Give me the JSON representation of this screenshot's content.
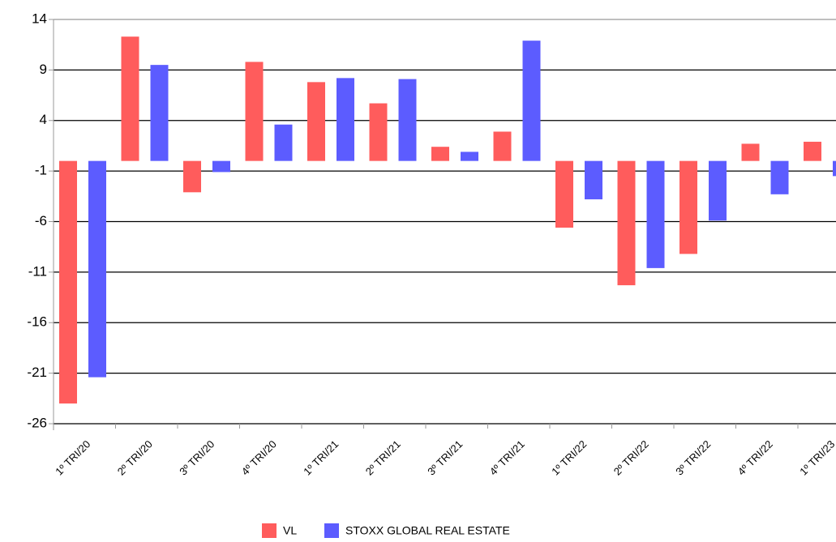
{
  "chart_data": {
    "type": "bar",
    "categories": [
      "1º TRI/20",
      "2º TRI/20",
      "3º TRI/20",
      "4º TRI/20",
      "1º TRI/21",
      "2º TRI/21",
      "3º TRI/21",
      "4º TRI/21",
      "1º TRI/22",
      "2º TRI/22",
      "3º TRI/22",
      "4º TRI/22",
      "1º TRI/23"
    ],
    "series": [
      {
        "name": "VL",
        "color": "#ff5c5c",
        "values": [
          -24.0,
          12.3,
          -3.1,
          9.8,
          7.8,
          5.7,
          1.4,
          2.9,
          -6.6,
          -12.3,
          -9.2,
          1.7,
          1.9
        ]
      },
      {
        "name": "STOXX GLOBAL REAL ESTATE",
        "color": "#5c5cff",
        "values": [
          -21.4,
          9.5,
          -1.1,
          3.6,
          8.2,
          8.1,
          0.9,
          11.9,
          -3.8,
          -10.6,
          -5.9,
          -3.3,
          -1.5
        ]
      }
    ],
    "ylim": [
      -26,
      14
    ],
    "yticks": [
      -26,
      -21,
      -16,
      -11,
      -6,
      -1,
      4,
      9,
      14
    ],
    "grid": true,
    "legend": "bottom"
  }
}
